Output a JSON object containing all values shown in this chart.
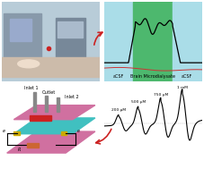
{
  "fig_width": 2.27,
  "fig_height": 1.89,
  "dpi": 100,
  "top_right_bg_cyan": "#aadde8",
  "top_right_bg_green": "#4db86e",
  "bottom_right_labels": [
    "200 μM",
    "500 μM",
    "750 μM",
    "1 mM"
  ],
  "acsf_label": "aCSF",
  "microdialysate_label": "Brain Microdialysate",
  "arrow_color": "#cc2222",
  "chip_top_color": "#d070a0",
  "chip_middle_color": "#40c0c0",
  "chip_bottom_color": "#d070a0",
  "chip_wire_color": "#ccaa00",
  "chip_needle_color": "#666666",
  "chip_red_bar_color": "#cc2222",
  "inlet1_label": "Inlet 1",
  "outlet_label": "Outlet",
  "inlet2_label": "Inlet 2",
  "e_label": "e",
  "r_label": "R"
}
